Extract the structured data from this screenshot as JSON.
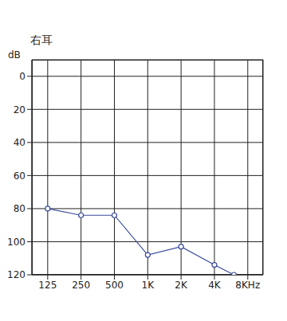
{
  "chart_data": {
    "type": "line",
    "title": "右耳",
    "y_label": "dB",
    "x": [
      125,
      250,
      500,
      1000,
      2000,
      4000,
      6000
    ],
    "values": [
      80,
      84,
      84,
      108,
      103,
      114,
      120
    ],
    "color": "#3a4a9a",
    "marker": "circle",
    "line_style": "solid",
    "log": "x",
    "grid": true,
    "xlim": [
      90,
      11000
    ],
    "xticks": [
      125,
      250,
      500,
      {
        "value": 1000,
        "label": "1K"
      },
      {
        "value": 2000,
        "label": "2K"
      },
      {
        "value": 4000,
        "label": "4K"
      },
      {
        "value": 8000,
        "label": "8KHz"
      }
    ],
    "ylim": [
      -10,
      120
    ],
    "yticks": [
      0,
      20,
      40,
      60,
      80,
      100,
      120
    ]
  }
}
